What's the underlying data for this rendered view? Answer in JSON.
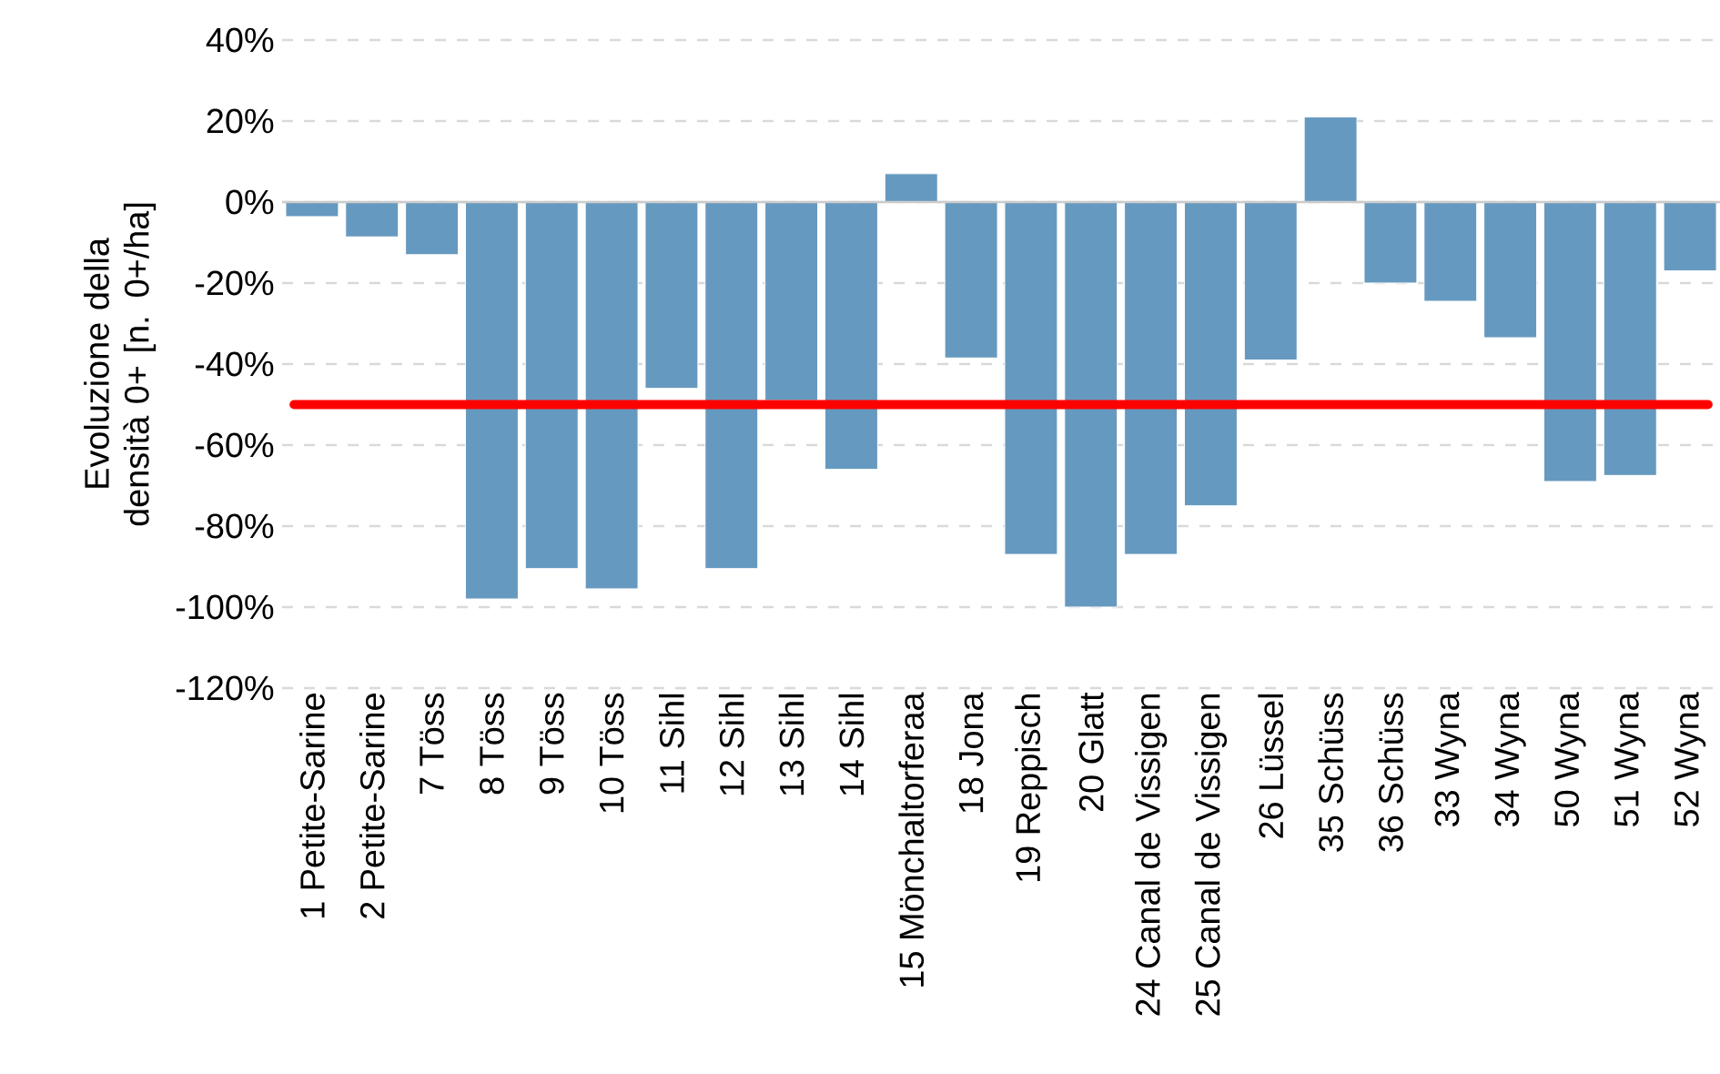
{
  "chart_data": {
    "type": "bar",
    "ylabel": "Evoluzione della densità 0+ [n. 0+/ha]",
    "categories": [
      "1 Petite-Sarine",
      "2 Petite-Sarine",
      "7 Töss",
      "8 Töss",
      "9 Töss",
      "10 Töss",
      "11 Sihl",
      "12 Sihl",
      "13 Sihl",
      "14 Sihl",
      "15 Mönchaltorferaa",
      "18 Jona",
      "19 Reppisch",
      "20 Glatt",
      "24 Canal de Vissigen",
      "25 Canal de Vissigen",
      "26 Lüssel",
      "35 Schüss",
      "36 Schüss",
      "33 Wyna",
      "34 Wyna",
      "50 Wyna",
      "51 Wyna",
      "52 Wyna"
    ],
    "values": [
      -3.6,
      -8.6,
      -13,
      -98,
      -90.5,
      -95.5,
      -46,
      -90.5,
      -49,
      -66,
      7,
      -38.5,
      -87,
      -100,
      -87,
      -75,
      -39,
      21,
      -20,
      -24.5,
      -33.5,
      -69,
      -67.5,
      -17
    ],
    "color": "#6699bf",
    "ylim": [
      -120,
      40
    ],
    "yticks": [
      {
        "value": -120,
        "label": "-120%"
      },
      {
        "value": -100,
        "label": "-100%"
      },
      {
        "value": -80,
        "label": "-80%"
      },
      {
        "value": -60,
        "label": "-60%"
      },
      {
        "value": -40,
        "label": "-40%"
      },
      {
        "value": -20,
        "label": "-20%"
      },
      {
        "value": 0,
        "label": "0%"
      },
      {
        "value": 20,
        "label": "20%"
      },
      {
        "value": 40,
        "label": "40%"
      }
    ],
    "grid": "y",
    "ref_lines": [
      {
        "axis": "y",
        "value": -50,
        "color": "#ff0000",
        "line_style": "solid"
      }
    ]
  }
}
